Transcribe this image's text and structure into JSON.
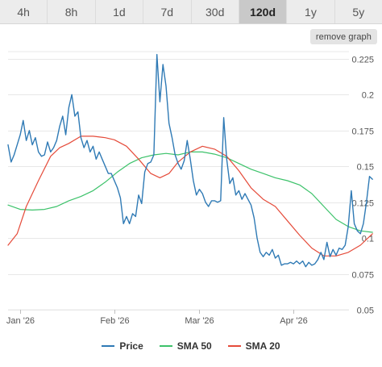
{
  "tabs": [
    {
      "label": "4h",
      "active": false
    },
    {
      "label": "8h",
      "active": false
    },
    {
      "label": "1d",
      "active": false
    },
    {
      "label": "7d",
      "active": false
    },
    {
      "label": "30d",
      "active": false
    },
    {
      "label": "120d",
      "active": true
    },
    {
      "label": "1y",
      "active": false
    },
    {
      "label": "5y",
      "active": false
    }
  ],
  "remove_graph_label": "remove graph",
  "chart_data": {
    "type": "line",
    "x_axis": {
      "type": "date",
      "range": [
        "2025-12-28",
        "2026-04-28"
      ],
      "ticks": [
        {
          "label": "Jan '26",
          "date": "2026-01-01"
        },
        {
          "label": "Feb '26",
          "date": "2026-02-01"
        },
        {
          "label": "Mar '26",
          "date": "2026-03-01"
        },
        {
          "label": "Apr '26",
          "date": "2026-04-01"
        }
      ]
    },
    "y_axis": {
      "position": "right",
      "range": [
        0.05,
        0.23
      ],
      "ticks": [
        0.05,
        0.075,
        0.1,
        0.125,
        0.15,
        0.175,
        0.2,
        0.225
      ],
      "tick_labels": [
        "0.05",
        "0.075",
        "0.1",
        "0.125",
        "0.15",
        "0.175",
        "0.2",
        "0.225"
      ]
    },
    "grid": {
      "horizontal": true,
      "vertical": false
    },
    "legend": {
      "placement": "bottom-center"
    },
    "series": [
      {
        "name": "Price",
        "color": "#2f7ab5",
        "points": [
          [
            "2025-12-28",
            0.165
          ],
          [
            "2025-12-29",
            0.153
          ],
          [
            "2025-12-30",
            0.158
          ],
          [
            "2025-12-31",
            0.165
          ],
          [
            "2026-01-01",
            0.172
          ],
          [
            "2026-01-02",
            0.182
          ],
          [
            "2026-01-03",
            0.168
          ],
          [
            "2026-01-04",
            0.175
          ],
          [
            "2026-01-05",
            0.165
          ],
          [
            "2026-01-06",
            0.17
          ],
          [
            "2026-01-07",
            0.16
          ],
          [
            "2026-01-08",
            0.157
          ],
          [
            "2026-01-09",
            0.158
          ],
          [
            "2026-01-10",
            0.167
          ],
          [
            "2026-01-11",
            0.16
          ],
          [
            "2026-01-12",
            0.163
          ],
          [
            "2026-01-13",
            0.168
          ],
          [
            "2026-01-14",
            0.178
          ],
          [
            "2026-01-15",
            0.185
          ],
          [
            "2026-01-16",
            0.172
          ],
          [
            "2026-01-17",
            0.191
          ],
          [
            "2026-01-18",
            0.2
          ],
          [
            "2026-01-19",
            0.185
          ],
          [
            "2026-01-20",
            0.188
          ],
          [
            "2026-01-21",
            0.17
          ],
          [
            "2026-01-22",
            0.163
          ],
          [
            "2026-01-23",
            0.168
          ],
          [
            "2026-01-24",
            0.16
          ],
          [
            "2026-01-25",
            0.164
          ],
          [
            "2026-01-26",
            0.155
          ],
          [
            "2026-01-27",
            0.16
          ],
          [
            "2026-01-28",
            0.155
          ],
          [
            "2026-01-29",
            0.15
          ],
          [
            "2026-01-30",
            0.145
          ],
          [
            "2026-01-31",
            0.145
          ],
          [
            "2026-02-01",
            0.14
          ],
          [
            "2026-02-02",
            0.135
          ],
          [
            "2026-02-03",
            0.128
          ],
          [
            "2026-02-04",
            0.11
          ],
          [
            "2026-02-05",
            0.115
          ],
          [
            "2026-02-06",
            0.11
          ],
          [
            "2026-02-07",
            0.117
          ],
          [
            "2026-02-08",
            0.115
          ],
          [
            "2026-02-09",
            0.13
          ],
          [
            "2026-02-10",
            0.124
          ],
          [
            "2026-02-11",
            0.146
          ],
          [
            "2026-02-12",
            0.152
          ],
          [
            "2026-02-13",
            0.153
          ],
          [
            "2026-02-14",
            0.158
          ],
          [
            "2026-02-15",
            0.228
          ],
          [
            "2026-02-16",
            0.195
          ],
          [
            "2026-02-17",
            0.221
          ],
          [
            "2026-02-18",
            0.206
          ],
          [
            "2026-02-19",
            0.18
          ],
          [
            "2026-02-20",
            0.17
          ],
          [
            "2026-02-21",
            0.158
          ],
          [
            "2026-02-22",
            0.152
          ],
          [
            "2026-02-23",
            0.148
          ],
          [
            "2026-02-24",
            0.154
          ],
          [
            "2026-02-25",
            0.168
          ],
          [
            "2026-02-26",
            0.155
          ],
          [
            "2026-02-27",
            0.14
          ],
          [
            "2026-02-28",
            0.13
          ],
          [
            "2026-03-01",
            0.134
          ],
          [
            "2026-03-02",
            0.131
          ],
          [
            "2026-03-03",
            0.125
          ],
          [
            "2026-03-04",
            0.122
          ],
          [
            "2026-03-05",
            0.126
          ],
          [
            "2026-03-06",
            0.126
          ],
          [
            "2026-03-07",
            0.125
          ],
          [
            "2026-03-08",
            0.126
          ],
          [
            "2026-03-09",
            0.184
          ],
          [
            "2026-03-10",
            0.155
          ],
          [
            "2026-03-11",
            0.138
          ],
          [
            "2026-03-12",
            0.142
          ],
          [
            "2026-03-13",
            0.13
          ],
          [
            "2026-03-14",
            0.133
          ],
          [
            "2026-03-15",
            0.127
          ],
          [
            "2026-03-16",
            0.131
          ],
          [
            "2026-03-17",
            0.127
          ],
          [
            "2026-03-18",
            0.123
          ],
          [
            "2026-03-19",
            0.114
          ],
          [
            "2026-03-20",
            0.1
          ],
          [
            "2026-03-21",
            0.09
          ],
          [
            "2026-03-22",
            0.087
          ],
          [
            "2026-03-23",
            0.09
          ],
          [
            "2026-03-24",
            0.088
          ],
          [
            "2026-03-25",
            0.092
          ],
          [
            "2026-03-26",
            0.086
          ],
          [
            "2026-03-27",
            0.088
          ],
          [
            "2026-03-28",
            0.081
          ],
          [
            "2026-03-29",
            0.082
          ],
          [
            "2026-03-30",
            0.082
          ],
          [
            "2026-03-31",
            0.083
          ],
          [
            "2026-04-01",
            0.082
          ],
          [
            "2026-04-02",
            0.084
          ],
          [
            "2026-04-03",
            0.082
          ],
          [
            "2026-04-04",
            0.084
          ],
          [
            "2026-04-05",
            0.08
          ],
          [
            "2026-04-06",
            0.083
          ],
          [
            "2026-04-07",
            0.081
          ],
          [
            "2026-04-08",
            0.082
          ],
          [
            "2026-04-09",
            0.085
          ],
          [
            "2026-04-10",
            0.09
          ],
          [
            "2026-04-11",
            0.085
          ],
          [
            "2026-04-12",
            0.097
          ],
          [
            "2026-04-13",
            0.087
          ],
          [
            "2026-04-14",
            0.092
          ],
          [
            "2026-04-15",
            0.088
          ],
          [
            "2026-04-16",
            0.093
          ],
          [
            "2026-04-17",
            0.092
          ],
          [
            "2026-04-18",
            0.095
          ],
          [
            "2026-04-19",
            0.108
          ],
          [
            "2026-04-20",
            0.133
          ],
          [
            "2026-04-21",
            0.11
          ],
          [
            "2026-04-22",
            0.105
          ],
          [
            "2026-04-23",
            0.103
          ],
          [
            "2026-04-24",
            0.11
          ],
          [
            "2026-04-25",
            0.125
          ],
          [
            "2026-04-26",
            0.143
          ],
          [
            "2026-04-27",
            0.141
          ]
        ]
      },
      {
        "name": "SMA 50",
        "color": "#3cc26a",
        "points": [
          [
            "2025-12-28",
            0.123
          ],
          [
            "2026-01-01",
            0.12
          ],
          [
            "2026-01-05",
            0.1195
          ],
          [
            "2026-01-09",
            0.12
          ],
          [
            "2026-01-13",
            0.122
          ],
          [
            "2026-01-17",
            0.126
          ],
          [
            "2026-01-21",
            0.129
          ],
          [
            "2026-01-25",
            0.133
          ],
          [
            "2026-01-29",
            0.139
          ],
          [
            "2026-02-02",
            0.146
          ],
          [
            "2026-02-06",
            0.152
          ],
          [
            "2026-02-10",
            0.156
          ],
          [
            "2026-02-14",
            0.158
          ],
          [
            "2026-02-18",
            0.159
          ],
          [
            "2026-02-22",
            0.158
          ],
          [
            "2026-02-26",
            0.16
          ],
          [
            "2026-03-02",
            0.16
          ],
          [
            "2026-03-06",
            0.1585
          ],
          [
            "2026-03-10",
            0.156
          ],
          [
            "2026-03-14",
            0.152
          ],
          [
            "2026-03-18",
            0.148
          ],
          [
            "2026-03-22",
            0.145
          ],
          [
            "2026-03-26",
            0.142
          ],
          [
            "2026-03-30",
            0.14
          ],
          [
            "2026-04-03",
            0.137
          ],
          [
            "2026-04-07",
            0.131
          ],
          [
            "2026-04-11",
            0.122
          ],
          [
            "2026-04-15",
            0.113
          ],
          [
            "2026-04-19",
            0.108
          ],
          [
            "2026-04-23",
            0.105
          ],
          [
            "2026-04-27",
            0.104
          ]
        ]
      },
      {
        "name": "SMA 20",
        "color": "#e54b3a",
        "points": [
          [
            "2025-12-28",
            0.095
          ],
          [
            "2025-12-31",
            0.103
          ],
          [
            "2026-01-03",
            0.122
          ],
          [
            "2026-01-07",
            0.14
          ],
          [
            "2026-01-11",
            0.157
          ],
          [
            "2026-01-14",
            0.163
          ],
          [
            "2026-01-17",
            0.166
          ],
          [
            "2026-01-21",
            0.171
          ],
          [
            "2026-01-25",
            0.171
          ],
          [
            "2026-01-29",
            0.17
          ],
          [
            "2026-02-01",
            0.1685
          ],
          [
            "2026-02-05",
            0.164
          ],
          [
            "2026-02-09",
            0.155
          ],
          [
            "2026-02-13",
            0.145
          ],
          [
            "2026-02-16",
            0.142
          ],
          [
            "2026-02-19",
            0.145
          ],
          [
            "2026-02-22",
            0.153
          ],
          [
            "2026-02-26",
            0.16
          ],
          [
            "2026-03-02",
            0.164
          ],
          [
            "2026-03-06",
            0.162
          ],
          [
            "2026-03-10",
            0.157
          ],
          [
            "2026-03-14",
            0.147
          ],
          [
            "2026-03-18",
            0.135
          ],
          [
            "2026-03-22",
            0.127
          ],
          [
            "2026-03-26",
            0.122
          ],
          [
            "2026-03-30",
            0.112
          ],
          [
            "2026-04-03",
            0.102
          ],
          [
            "2026-04-07",
            0.093
          ],
          [
            "2026-04-11",
            0.0875
          ],
          [
            "2026-04-15",
            0.0875
          ],
          [
            "2026-04-19",
            0.09
          ],
          [
            "2026-04-23",
            0.095
          ],
          [
            "2026-04-27",
            0.103
          ]
        ]
      }
    ]
  }
}
